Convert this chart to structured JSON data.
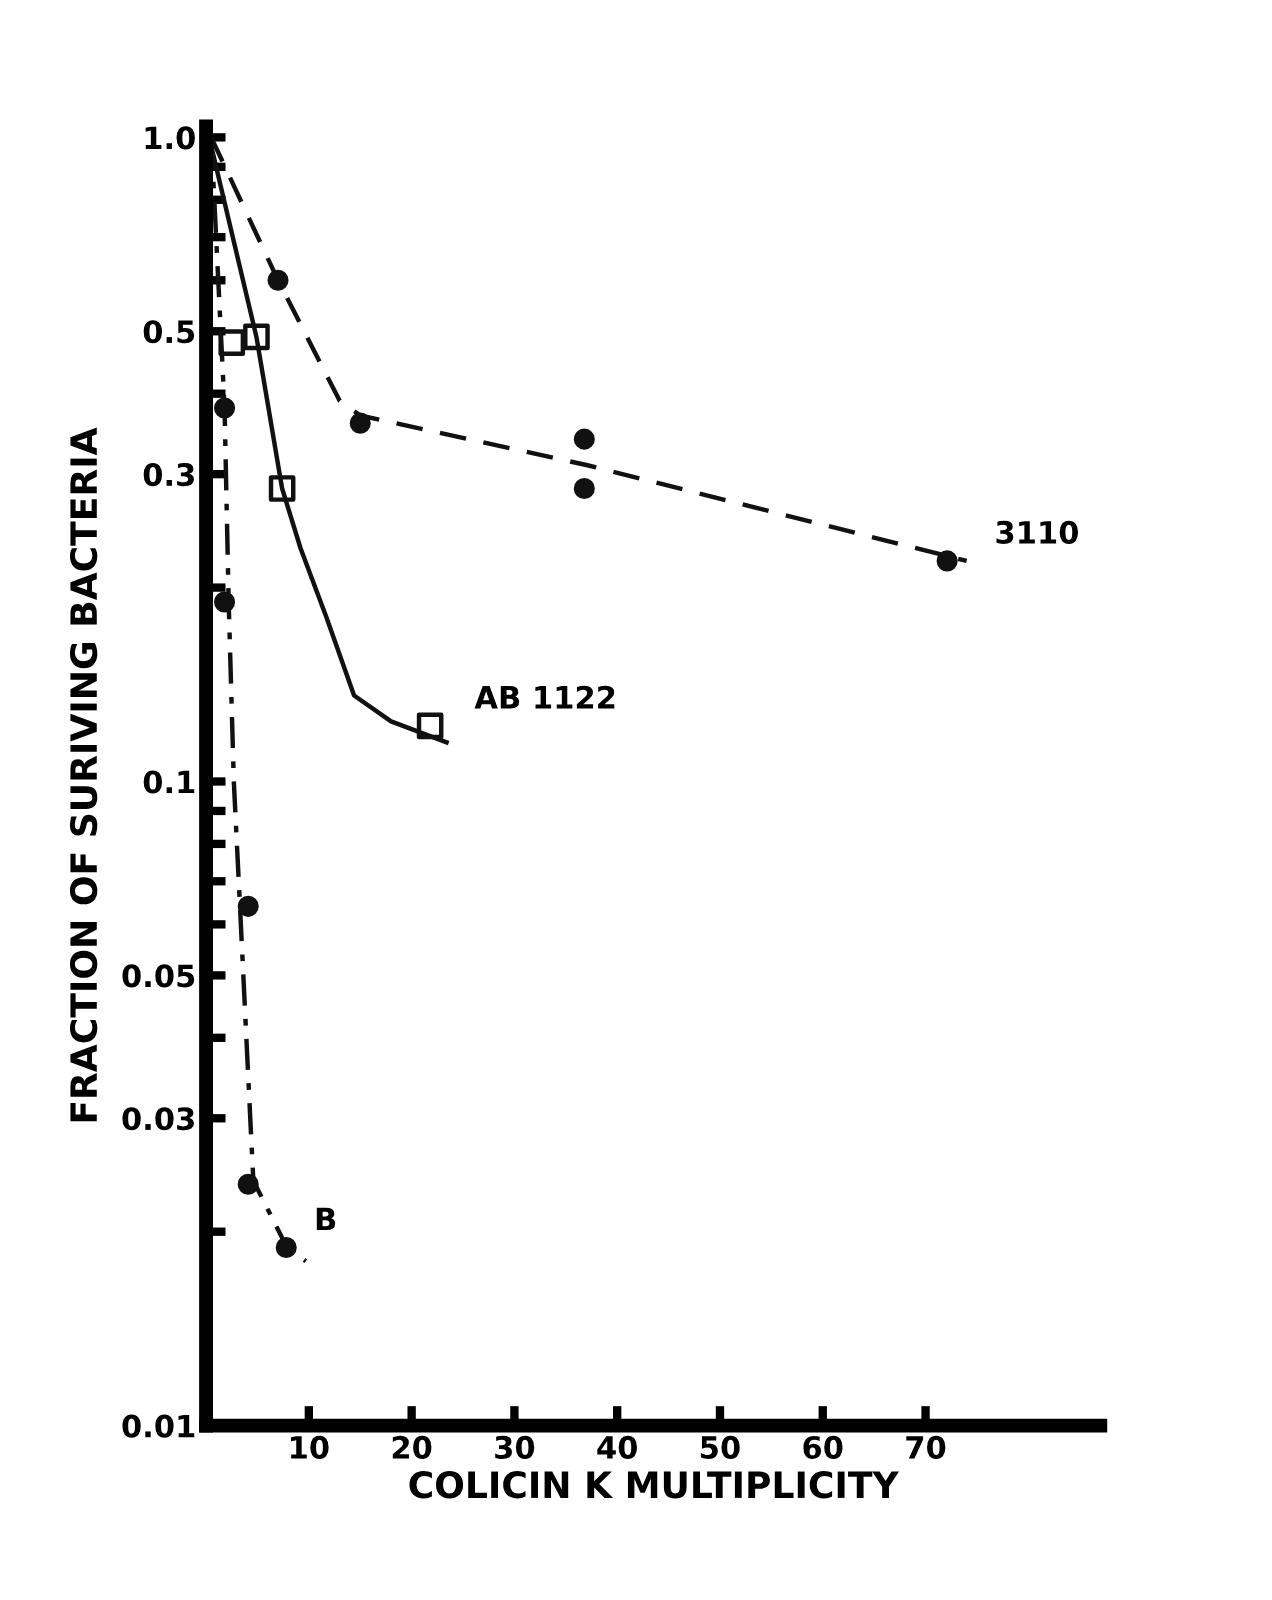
{
  "chart_data": {
    "type": "scatter",
    "xlabel": "COLICIN K MULTIPLICITY",
    "ylabel": "FRACTION OF SURIVING BACTERIA",
    "log": "y",
    "grid": false,
    "legend": false,
    "xlim": [
      0,
      87
    ],
    "xticks": [
      10,
      20,
      30,
      40,
      50,
      60,
      70
    ],
    "ylim": [
      0.01,
      1.04
    ],
    "yticks": [
      {
        "value": 1,
        "label": "1.0"
      },
      {
        "value": 0.9,
        "label": null
      },
      {
        "value": 0.8,
        "label": null
      },
      {
        "value": 0.7,
        "label": null
      },
      {
        "value": 0.6,
        "label": null
      },
      0.5,
      {
        "value": 0.4,
        "label": null
      },
      0.3,
      {
        "value": 0.2,
        "label": null
      },
      0.1,
      {
        "value": 0.09,
        "label": null
      },
      {
        "value": 0.08,
        "label": null
      },
      {
        "value": 0.07,
        "label": null
      },
      {
        "value": 0.06,
        "label": null
      },
      0.05,
      {
        "value": 0.04,
        "label": null
      },
      0.03,
      {
        "value": 0.02,
        "label": null
      },
      0.01
    ],
    "series": [
      {
        "type": "line",
        "line_style": "dashed",
        "marker": "none",
        "color": "#111111",
        "x": [
          0.5,
          7,
          13,
          15,
          37,
          74
        ],
        "values": [
          1.0,
          0.6,
          0.39,
          0.37,
          0.31,
          0.22
        ]
      },
      {
        "marker": "circle",
        "color": "#111111",
        "x": [
          7,
          15,
          36.8,
          36.8,
          72.1
        ],
        "values": [
          0.6,
          0.36,
          0.34,
          0.285,
          0.22
        ]
      },
      {
        "type": "line",
        "line_style": "solid",
        "marker": "none",
        "color": "#111111",
        "x": [
          0.3,
          4.9,
          7.4,
          9.2,
          11.7,
          14.4,
          18,
          23.4
        ],
        "values": [
          1.0,
          0.49,
          0.285,
          0.23,
          0.18,
          0.136,
          0.124,
          0.115
        ]
      },
      {
        "marker": "square",
        "color": "#111111",
        "x": [
          2.5,
          4.9,
          7.4,
          21.8
        ],
        "values": [
          0.48,
          0.49,
          0.285,
          0.122
        ]
      },
      {
        "type": "line",
        "line_style": "dashdot",
        "marker": "none",
        "color": "#111111",
        "x": [
          0.5,
          1.8,
          2.2,
          2.7,
          3.3,
          4.3,
          4.6,
          7.8,
          9.7
        ],
        "values": [
          1.0,
          0.38,
          0.19,
          0.1,
          0.064,
          0.03,
          0.024,
          0.019,
          0.018
        ]
      },
      {
        "marker": "circle",
        "color": "#111111",
        "x": [
          1.8,
          1.8,
          4.1,
          4.1,
          7.8
        ],
        "values": [
          0.38,
          0.19,
          0.064,
          0.0237,
          0.0189
        ]
      }
    ],
    "annotations": [
      {
        "text": "3110",
        "x": 74,
        "y": 0.22
      },
      {
        "text": "AB 1122",
        "x": 23.4,
        "y": 0.122
      },
      {
        "text": "B",
        "x": 7.8,
        "y": 0.0189
      }
    ]
  }
}
